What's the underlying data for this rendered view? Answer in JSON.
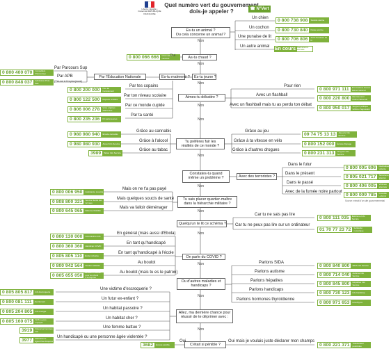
{
  "header": {
    "title_line1": "Quel numéro vert du gouvernement",
    "title_line2": "dois-je appeler ?",
    "badge": "N°Vert",
    "republique": "Liberté • Égalité • Fraternité RÉPUBLIQUE FRANÇAISE"
  },
  "questions": {
    "animal": "Es-tu un animal ?\nOu cela concerne un animal ?",
    "chaud": "As-tu chaud ?",
    "malmene": "Es-tu malmené ?",
    "jeune": "Es-tu jeune ?",
    "education": "Par l'Éducation Nationale",
    "debattre": "Aimes-tu débattre ?",
    "prefere": "Tu préfères fuir les\nréalités de ce monde ?",
    "constates": "Constates-tu quand\nmême un problème ?",
    "terroristes": "Avec des terroristes ?",
    "plaint": "Tu sais placer quartier-maître\ndans la hiérarchie militaire ?",
    "schema": "Quelqu'un te lit ce schéma ?",
    "covid": "On parle du COVID ?",
    "maladies": "Ou d'autres maladies et\nhandicaps ?",
    "chance": "Allez, ma dernière chance pour\nréussir de te déprimer avec :",
    "penible": "C'était si pénible ?"
  },
  "labels": {
    "chien": "Un chien",
    "cochon": "Un cochon",
    "punaise": "Une punaise de lit",
    "autre_animal": "Un autre animal",
    "parcours_sup": "Par Parcours Sup",
    "apb": "Par APB",
    "apb_note": "(T'es nul si t'es plus jeune)",
    "copains": "Par tes copains",
    "niveau": "Par ton niveau scolaire",
    "monde": "Par ce monde cupide",
    "sante": "Par ta santé",
    "pour_rien": "Pour rien",
    "flashball": "Avec un flashball",
    "flashball_debat": "Avec un flashball mais tu as perdu ton débat",
    "cannabis": "Grâce au cannabis",
    "alcool": "Grâce à l'alcool",
    "tabac": "Grâce au tabac",
    "jeu": "Grâce au jeu",
    "vitesse": "Grâce à ta vitesse en vélo",
    "drogues": "Grâce à d'autres drogues",
    "futur": "Dans le futur",
    "present": "Dans le présent",
    "passe": "Dans le passé",
    "fumee": "Avec de la fumée noire partout",
    "pas_paye": "Mais on ne t'a pas payé",
    "soucis": "Mais quelques soucis de santé",
    "demenager": "Mais va falloir déménager",
    "pas_lire": "Car tu ne sais pas lire",
    "ordinateur": "Car tu ne peux pas lire sur un ordinateur",
    "general": "En général (mais aussi d'Ebola)",
    "handicape": "En tant qu'handicapé",
    "ecole": "En tant qu'handicapé à l'école",
    "boulot": "Au boulot",
    "patron": "Au boulot (mais tu es le patron)",
    "sida": "Parlons SIDA",
    "autisme": "Parlons autisme",
    "hepatites": "Parlons hépatites",
    "handicaps": "Parlons handicaps",
    "thyroidienne": "Parlons hormones thyroïdienne",
    "escroquerie": "Une victime d'escroquerie ?",
    "ex_enfant": "Un futur ex-enfant ?",
    "passoire": "Un habitat passoire ?",
    "cher": "Un habitat cher ?",
    "battue": "Une femme battue ?",
    "agee": "Un handicapé ou une personne âgée violentée ?",
    "oui": "Oui",
    "oui_mais": "Oui mais je voulais juste déclarer mon champs",
    "en_cours": "En cours",
    "source": "Source: extrait d'un site gouvernemental"
  },
  "connectors": {
    "non": "Non",
    "oui": "Oui"
  },
  "numbers": {
    "chien": {
      "num": "0 800 738 908",
      "desc": "Société canine"
    },
    "cochon": {
      "num": "0 800 730 840",
      "desc": "Peste porcine"
    },
    "punaise": {
      "num": "0 800 706 806",
      "desc": "SOS Punaises de lit"
    },
    "autre_animal": {
      "desc": "Maltraitance animale"
    },
    "chaud": {
      "num": "0 800 066 666",
      "desc": "Informations canicule"
    },
    "conseillers": {
      "num": "0 800 400 070",
      "desc": "Conseillers Parcoursup"
    },
    "apb": {
      "num": "0 800 848 037",
      "desc": "Admission Post-Bac"
    },
    "copains": {
      "num": "0 800 200 000",
      "desc": "Non au harcèlement"
    },
    "niveau": {
      "num": "0 800 122 500",
      "desc": "Rupture scolaire"
    },
    "monde": {
      "num": "0 806 006 278",
      "desc": "Vivre origines différentes"
    },
    "sante": {
      "num": "0 800 235 236",
      "desc": "Fil santé jeunes"
    },
    "pour_rien": {
      "num": "0 800 971 111",
      "desc": "Informations Grand Débat National"
    },
    "flashball": {
      "num": "0 800 220 800",
      "desc": "Recrutement Police Nationale"
    },
    "flashball_debat": {
      "num": "0 800 950 017",
      "desc": "Support politique victime d'agression"
    },
    "cannabis": {
      "num": "0 980 980 940",
      "desc": "Écoute cannabis"
    },
    "alcool": {
      "num": "0 980 980 930",
      "desc": "Alcool Info Service"
    },
    "tabac": {
      "num": "3989",
      "desc": "Tabac Info Service"
    },
    "jeu": {
      "num": "09 74 75 13 13",
      "desc": "Joueurs Info Service"
    },
    "vitesse": {
      "num": "0 800 152 000",
      "desc": "Écoute Dopage"
    },
    "drogues": {
      "num": "0 800 231 313",
      "desc": "Drogues Info Service"
    },
    "futur": {
      "num": "0 800 005 696",
      "desc": "Radicalisation violente"
    },
    "present": {
      "num": "0 805 021 717",
      "desc": "Terrorisme attentat"
    },
    "passe": {
      "num": "0 800 406 005",
      "desc": "Victimes attentats"
    },
    "fumee": {
      "num": "0 800 009 785",
      "desc": "Incendie Lubrizol"
    },
    "pas_paye": {
      "num": "0 800 006 950",
      "desc": "Assistance Louvois"
    },
    "soucis": {
      "num": "0 808 800 321",
      "desc": "Service Santé des Armées"
    },
    "demenager": {
      "num": "0 800 645 065",
      "desc": "Défense Mobilité"
    },
    "pas_lire": {
      "num": "0 800 111 035",
      "desc": "Illettrisme Info Service"
    },
    "ordinateur": {
      "num": "01 70 77 23 72",
      "desc": "Solidarité numérique"
    },
    "general": {
      "num": "0 800 130 000",
      "desc": "Coronavirus Info"
    },
    "handicape": {
      "num": "0 800 360 360",
      "desc": "Handicap COVID"
    },
    "ecole": {
      "num": "0 805 805 110",
      "desc": "École inclusive"
    },
    "boulot": {
      "num": "0 800 942 564",
      "desc": "Soutien salariés"
    },
    "patron": {
      "num": "0 805 655 050",
      "desc": "Écoute & soutien pour les chefs d'entreprise"
    },
    "sida": {
      "num": "0 800 840 800",
      "desc": "SIDA Info Service"
    },
    "autisme": {
      "num": "0 800 714 040",
      "desc": "Autisme Info Service"
    },
    "hepatites": {
      "num": "0 800 845 800",
      "desc": "Hépatites Info Service"
    },
    "handicaps": {
      "num": "0 800 730 123",
      "desc": "Info handicap"
    },
    "thyroidienne": {
      "num": "0 800 971 653",
      "desc": "Lévothyrox"
    },
    "escroquerie": {
      "num": "0 805 805 817",
      "desc": "Info Escroquerie"
    },
    "ex_enfant": {
      "num": "0 800 081 111",
      "desc": "Avortement"
    },
    "passoire": {
      "num": "0 805 204 805",
      "desc": "Info énergie"
    },
    "cher": {
      "num": "0 805 160 075",
      "desc": "SOS Loyers impayés"
    },
    "battue": {
      "num": "3919",
      "desc": "Violences Femmes Info"
    },
    "agee": {
      "num": "3977",
      "desc": "Maltraitance âgées/handicapées"
    },
    "oui": {
      "num": "3682",
      "desc": "Écoute pénible"
    },
    "champs": {
      "num": "0 800 221 371",
      "desc": "Télédéclarer pesticides"
    }
  }
}
